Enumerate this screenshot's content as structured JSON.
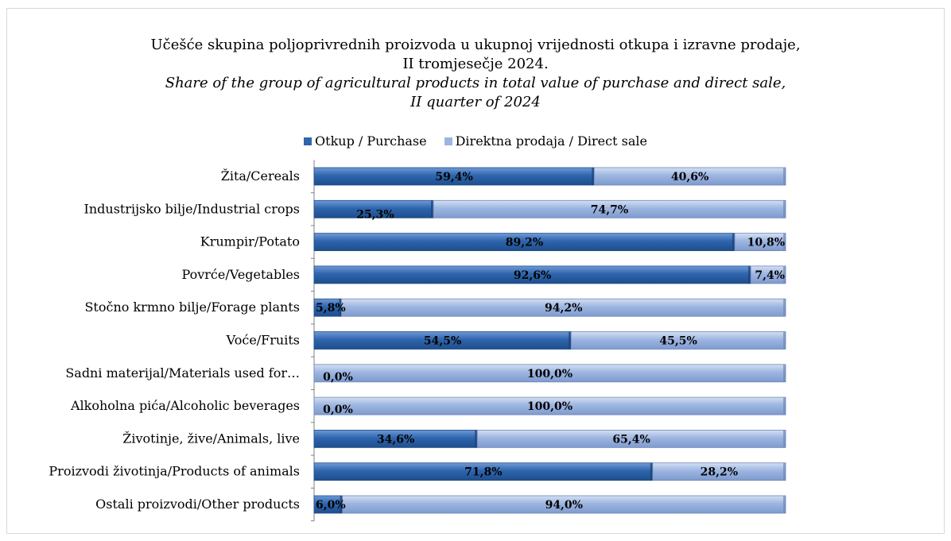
{
  "chart_data": {
    "type": "bar",
    "orientation": "horizontal",
    "stacked": "percent",
    "title": "Učešće skupina poljoprivrednih proizvoda u ukupnoj vrijednosti otkupa i izravne prodaje,",
    "title_line2": "II tromjesečje 2024.",
    "subtitle": "Share of the group of agricultural products in total value of purchase and direct sale,",
    "subtitle_line2": "II quarter of 2024",
    "legend_position": "top",
    "grid": false,
    "xlim": [
      0,
      100
    ],
    "categories": [
      "Žita/Cereals",
      "Industrijsko bilje/Industrial crops",
      "Krumpir/Potato",
      "Povrće/Vegetables",
      "Stočno krmno bilje/Forage plants",
      "Voće/Fruits",
      "Sadni materijal/Materials used for…",
      "Alkoholna pića/Alcoholic beverages",
      "Životinje, žive/Animals, live",
      "Proizvodi životinja/Products of animals",
      "Ostali proizvodi/Other products"
    ],
    "series": [
      {
        "name": "Otkup / Purchase",
        "color": "#2e65ad",
        "values": [
          59.4,
          25.3,
          89.2,
          92.6,
          5.8,
          54.5,
          0.0,
          0.0,
          34.6,
          71.8,
          6.0
        ],
        "labels": [
          "59,4%",
          "25,3%",
          "89,2%",
          "92,6%",
          "5,8%",
          "54,5%",
          "0,0%",
          "0,0%",
          "34,6%",
          "71,8%",
          "6,0%"
        ]
      },
      {
        "name": "Direktna prodaja / Direct sale",
        "color": "#9db5e0",
        "values": [
          40.6,
          74.7,
          10.8,
          7.4,
          94.2,
          45.5,
          100.0,
          100.0,
          65.4,
          28.2,
          94.0
        ],
        "labels": [
          "40,6%",
          "74,7%",
          "10,8%",
          "7,4%",
          "94,2%",
          "45,5%",
          "100,0%",
          "100,0%",
          "65,4%",
          "28,2%",
          "94,0%"
        ]
      }
    ]
  }
}
